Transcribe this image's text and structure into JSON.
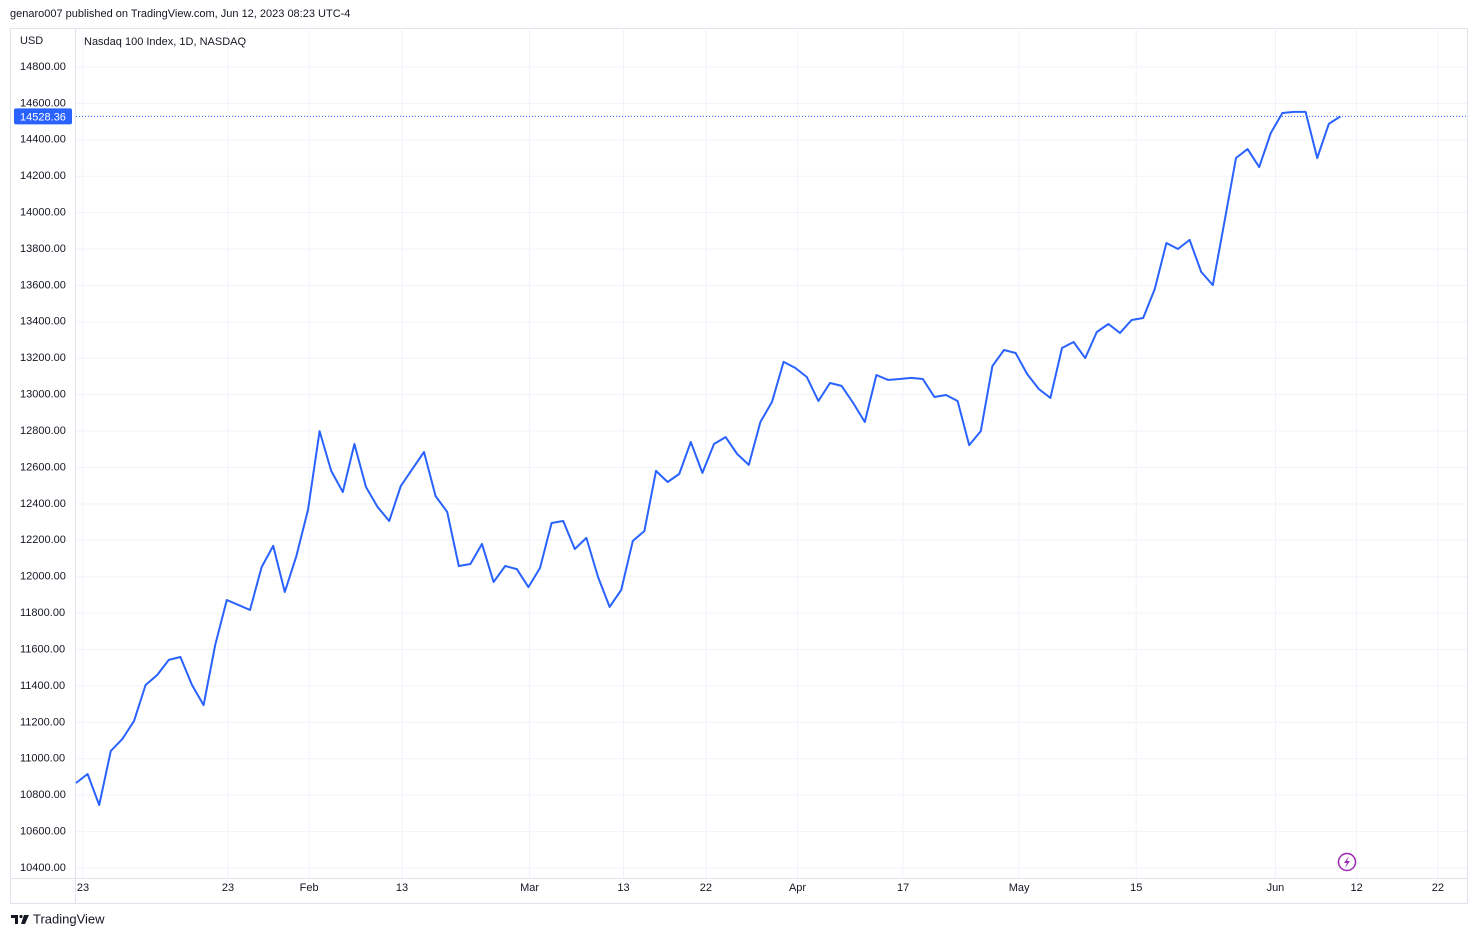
{
  "header": {
    "published": "genaro007 published on TradingView.com, Jun 12, 2023 08:23 UTC-4"
  },
  "footer": {
    "brand": "TradingView"
  },
  "chart_data": {
    "type": "line",
    "currency": "USD",
    "title": "Nasdaq 100 Index, 1D, NASDAQ",
    "series": [
      {
        "name": "Nasdaq 100 Index",
        "color": "#2962ff",
        "values": [
          10867,
          10916,
          10746,
          11043,
          11109,
          11207,
          11405,
          11460,
          11543,
          11559,
          11405,
          11295,
          11625,
          11872,
          11845,
          11817,
          12053,
          12169,
          11916,
          12114,
          12367,
          12800,
          12581,
          12465,
          12729,
          12493,
          12383,
          12306,
          12498,
          12592,
          12685,
          12443,
          12356,
          12059,
          12070,
          12180,
          11971,
          12059,
          12042,
          11943,
          12048,
          12295,
          12306,
          12152,
          12213,
          11999,
          11834,
          11927,
          12196,
          12251,
          12581,
          12520,
          12564,
          12740,
          12570,
          12729,
          12767,
          12674,
          12614,
          12850,
          12960,
          13180,
          13147,
          13097,
          12965,
          13064,
          13048,
          12954,
          12850,
          13108,
          13081,
          13086,
          13092,
          13086,
          12987,
          12998,
          12965,
          12723,
          12800,
          13157,
          13245,
          13229,
          13113,
          13031,
          12982,
          13256,
          13289,
          13201,
          13344,
          13388,
          13339,
          13410,
          13421,
          13581,
          13833,
          13800,
          13850,
          13674,
          13602,
          13948,
          14300,
          14349,
          14250,
          14437,
          14547,
          14553,
          14553,
          14300,
          14487,
          14528.36
        ]
      }
    ],
    "last_value": 14528.36,
    "xlim": [
      0,
      120
    ],
    "xticks": [
      {
        "value": 0.6,
        "label": "23"
      },
      {
        "value": 13.1,
        "label": "23"
      },
      {
        "value": 20.1,
        "label": "Feb"
      },
      {
        "value": 28.1,
        "label": "13"
      },
      {
        "value": 39.1,
        "label": "Mar"
      },
      {
        "value": 47.2,
        "label": "13"
      },
      {
        "value": 54.3,
        "label": "22"
      },
      {
        "value": 62.2,
        "label": "Apr"
      },
      {
        "value": 71.3,
        "label": "17"
      },
      {
        "value": 81.3,
        "label": "May"
      },
      {
        "value": 91.4,
        "label": "15"
      },
      {
        "value": 103.4,
        "label": "Jun"
      },
      {
        "value": 110.4,
        "label": "12"
      },
      {
        "value": 117.4,
        "label": "22"
      }
    ],
    "ylim": [
      10345,
      15003
    ],
    "yticks": [
      {
        "value": 10400,
        "label": "10400.00"
      },
      {
        "value": 10600,
        "label": "10600.00"
      },
      {
        "value": 10800,
        "label": "10800.00"
      },
      {
        "value": 11000,
        "label": "11000.00"
      },
      {
        "value": 11200,
        "label": "11200.00"
      },
      {
        "value": 11400,
        "label": "11400.00"
      },
      {
        "value": 11600,
        "label": "11600.00"
      },
      {
        "value": 11800,
        "label": "11800.00"
      },
      {
        "value": 12000,
        "label": "12000.00"
      },
      {
        "value": 12200,
        "label": "12200.00"
      },
      {
        "value": 12400,
        "label": "12400.00"
      },
      {
        "value": 12600,
        "label": "12600.00"
      },
      {
        "value": 12800,
        "label": "12800.00"
      },
      {
        "value": 13000,
        "label": "13000.00"
      },
      {
        "value": 13200,
        "label": "13200.00"
      },
      {
        "value": 13400,
        "label": "13400.00"
      },
      {
        "value": 13600,
        "label": "13600.00"
      },
      {
        "value": 13800,
        "label": "13800.00"
      },
      {
        "value": 14000,
        "label": "14000.00"
      },
      {
        "value": 14200,
        "label": "14200.00"
      },
      {
        "value": 14400,
        "label": "14400.00"
      },
      {
        "value": 14600,
        "label": "14600.00"
      },
      {
        "value": 14800,
        "label": "14800.00"
      }
    ],
    "grid": true
  }
}
